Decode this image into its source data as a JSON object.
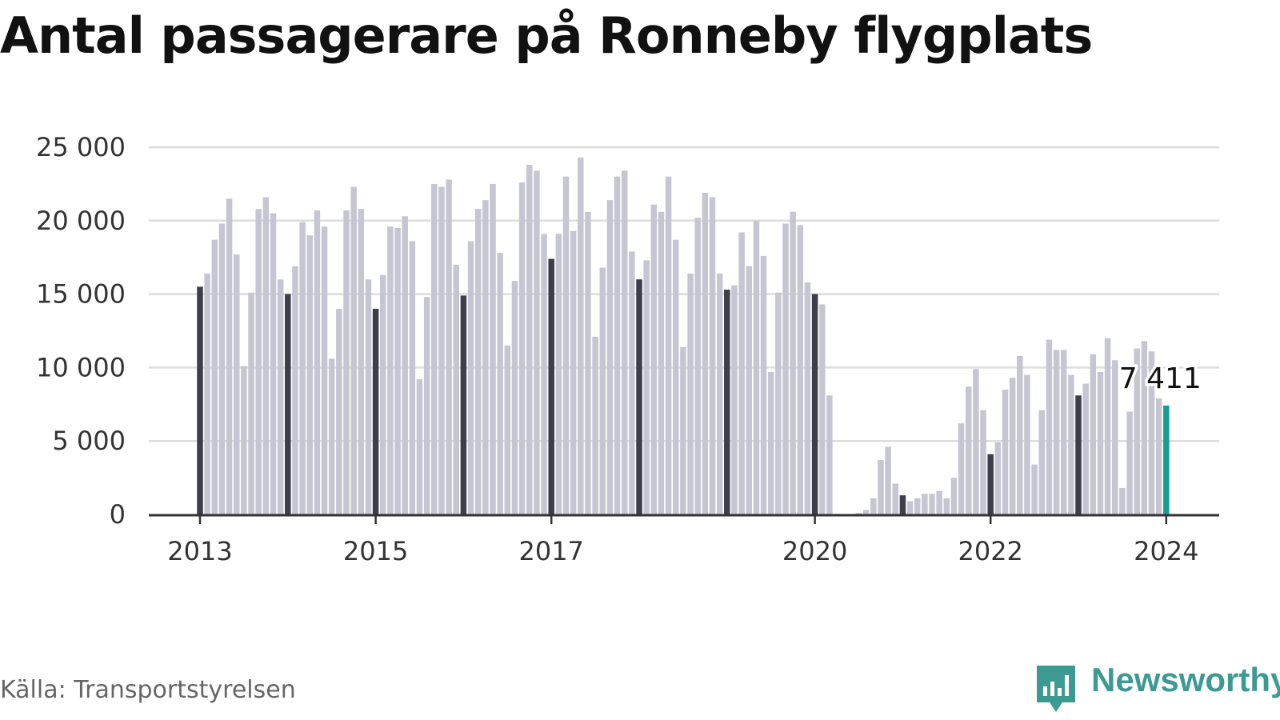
{
  "title": "Antal passagerare på Ronneby flygplats",
  "source": "Källa: Transportstyrelsen",
  "brand": "Newsworthy",
  "colors": {
    "bar": "#c6c6d2",
    "january": "#3e3e4a",
    "latest": "#1a9c96",
    "grid": "#dddddd",
    "axis": "#333333"
  },
  "chart_data": {
    "type": "bar",
    "xlabel": "",
    "ylabel": "",
    "ylim": [
      0,
      25000
    ],
    "y_ticks": [
      0,
      5000,
      10000,
      15000,
      20000,
      25000
    ],
    "y_tick_labels": [
      "0",
      "5 000",
      "10 000",
      "15 000",
      "20 000",
      "25 000"
    ],
    "x_tick_labels": [
      {
        "year": 2013,
        "label": "2013"
      },
      {
        "year": 2015,
        "label": "2015"
      },
      {
        "year": 2017,
        "label": "2017"
      },
      {
        "year": 2020,
        "label": "2020"
      },
      {
        "year": 2022,
        "label": "2022"
      },
      {
        "year": 2024,
        "label": "2024"
      }
    ],
    "start_period": "2013-01",
    "period": "monthly",
    "grid": true,
    "highlight": "january",
    "annotation": {
      "period": "2024-01",
      "value": 7411,
      "label": "7 411"
    },
    "values": [
      15500,
      16400,
      18700,
      19800,
      21500,
      17700,
      10100,
      15100,
      20800,
      21600,
      20500,
      16000,
      15000,
      16900,
      19900,
      19000,
      20700,
      19600,
      10600,
      14000,
      20700,
      22300,
      20800,
      16000,
      14000,
      16300,
      19600,
      19500,
      20300,
      18600,
      9200,
      14800,
      22500,
      22300,
      22800,
      17000,
      14900,
      18600,
      20800,
      21400,
      22500,
      17800,
      11500,
      15900,
      22600,
      23800,
      23400,
      19100,
      17400,
      19100,
      23000,
      19300,
      24300,
      20600,
      12100,
      16800,
      21400,
      23000,
      23400,
      17900,
      16000,
      17300,
      21100,
      20600,
      23000,
      18700,
      11400,
      16400,
      20200,
      21900,
      21600,
      16400,
      15300,
      15600,
      19200,
      16900,
      20000,
      17600,
      9700,
      15100,
      19800,
      20600,
      19700,
      15800,
      15000,
      14300,
      8100,
      0,
      0,
      0,
      100,
      300,
      1100,
      3700,
      4600,
      2100,
      1300,
      900,
      1100,
      1400,
      1400,
      1600,
      1100,
      2500,
      6200,
      8700,
      9900,
      7100,
      4100,
      4900,
      8500,
      9300,
      10800,
      9500,
      3400,
      7100,
      11900,
      11200,
      11200,
      9500,
      8100,
      8900,
      10900,
      9700,
      12000,
      10500,
      1800,
      7000,
      11300,
      11800,
      11100,
      7900,
      7411
    ]
  }
}
